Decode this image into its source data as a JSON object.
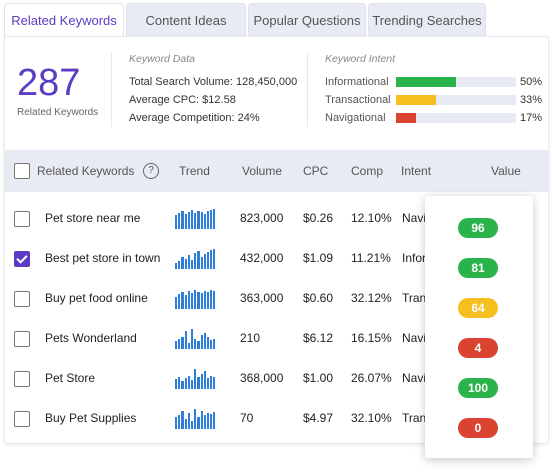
{
  "tabs": [
    {
      "label": "Related Keywords",
      "active": true
    },
    {
      "label": "Content Ideas",
      "active": false
    },
    {
      "label": "Popular Questions",
      "active": false
    },
    {
      "label": "Trending Searches",
      "active": false
    }
  ],
  "summary": {
    "count": "287",
    "count_label": "Related Keywords",
    "keyword_data_title": "Keyword Data",
    "total_search_volume_label": "Total Search Volume:",
    "total_search_volume": "128,450,000",
    "average_cpc_label": "Average CPC:",
    "average_cpc": "$12.58",
    "average_competition_label": "Average Competition:",
    "average_competition": "24%",
    "keyword_intent_title": "Keyword Intent",
    "intents": [
      {
        "name": "Informational",
        "percent": 50,
        "percent_label": "50%",
        "color": "#2bb34b"
      },
      {
        "name": "Transactional",
        "percent": 33,
        "percent_label": "33%",
        "color": "#f4bf1f"
      },
      {
        "name": "Navigational",
        "percent": 17,
        "percent_label": "17%",
        "color": "#d9432f"
      }
    ]
  },
  "table": {
    "headers": {
      "keyword": "Related Keywords",
      "trend": "Trend",
      "volume": "Volume",
      "cpc": "CPC",
      "comp": "Comp",
      "intent": "Intent",
      "value": "Value"
    },
    "rows": [
      {
        "keyword": "Pet store near me",
        "checked": false,
        "volume": "823,000",
        "cpc": "$0.26",
        "comp": "12.10%",
        "intent": "Navi",
        "trend": [
          14,
          16,
          18,
          15,
          17,
          19,
          16,
          18,
          17,
          15,
          18,
          19,
          20
        ],
        "value": "96",
        "value_color": "#2bb34b"
      },
      {
        "keyword": "Best pet store in town",
        "checked": true,
        "volume": "432,000",
        "cpc": "$1.09",
        "comp": "11.21%",
        "intent": "Infor",
        "trend": [
          6,
          8,
          12,
          10,
          14,
          9,
          16,
          18,
          12,
          15,
          17,
          19,
          20
        ],
        "value": "81",
        "value_color": "#2bb34b"
      },
      {
        "keyword": "Buy pet food online",
        "checked": false,
        "volume": "363,000",
        "cpc": "$0.60",
        "comp": "32.12%",
        "intent": "Tran",
        "trend": [
          12,
          15,
          17,
          14,
          18,
          16,
          19,
          17,
          16,
          18,
          17,
          19,
          18
        ],
        "value": "64",
        "value_color": "#f4bf1f"
      },
      {
        "keyword": "Pets Wonderland",
        "checked": false,
        "volume": "210",
        "cpc": "$6.12",
        "comp": "16.15%",
        "intent": "Navi",
        "trend": [
          8,
          10,
          12,
          18,
          6,
          20,
          10,
          8,
          14,
          16,
          12,
          9,
          10
        ],
        "value": "4",
        "value_color": "#d9432f"
      },
      {
        "keyword": "Pet Store",
        "checked": false,
        "volume": "368,000",
        "cpc": "$1.00",
        "comp": "26.07%",
        "intent": "Navi",
        "trend": [
          10,
          12,
          8,
          11,
          13,
          9,
          20,
          12,
          15,
          18,
          11,
          13,
          12
        ],
        "value": "100",
        "value_color": "#2bb34b"
      },
      {
        "keyword": "Buy Pet Supplies",
        "checked": false,
        "volume": "70",
        "cpc": "$4.97",
        "comp": "32.10%",
        "intent": "Tran",
        "trend": [
          12,
          14,
          18,
          10,
          16,
          8,
          20,
          12,
          18,
          14,
          16,
          15,
          17
        ],
        "value": "0",
        "value_color": "#d9432f"
      }
    ]
  }
}
